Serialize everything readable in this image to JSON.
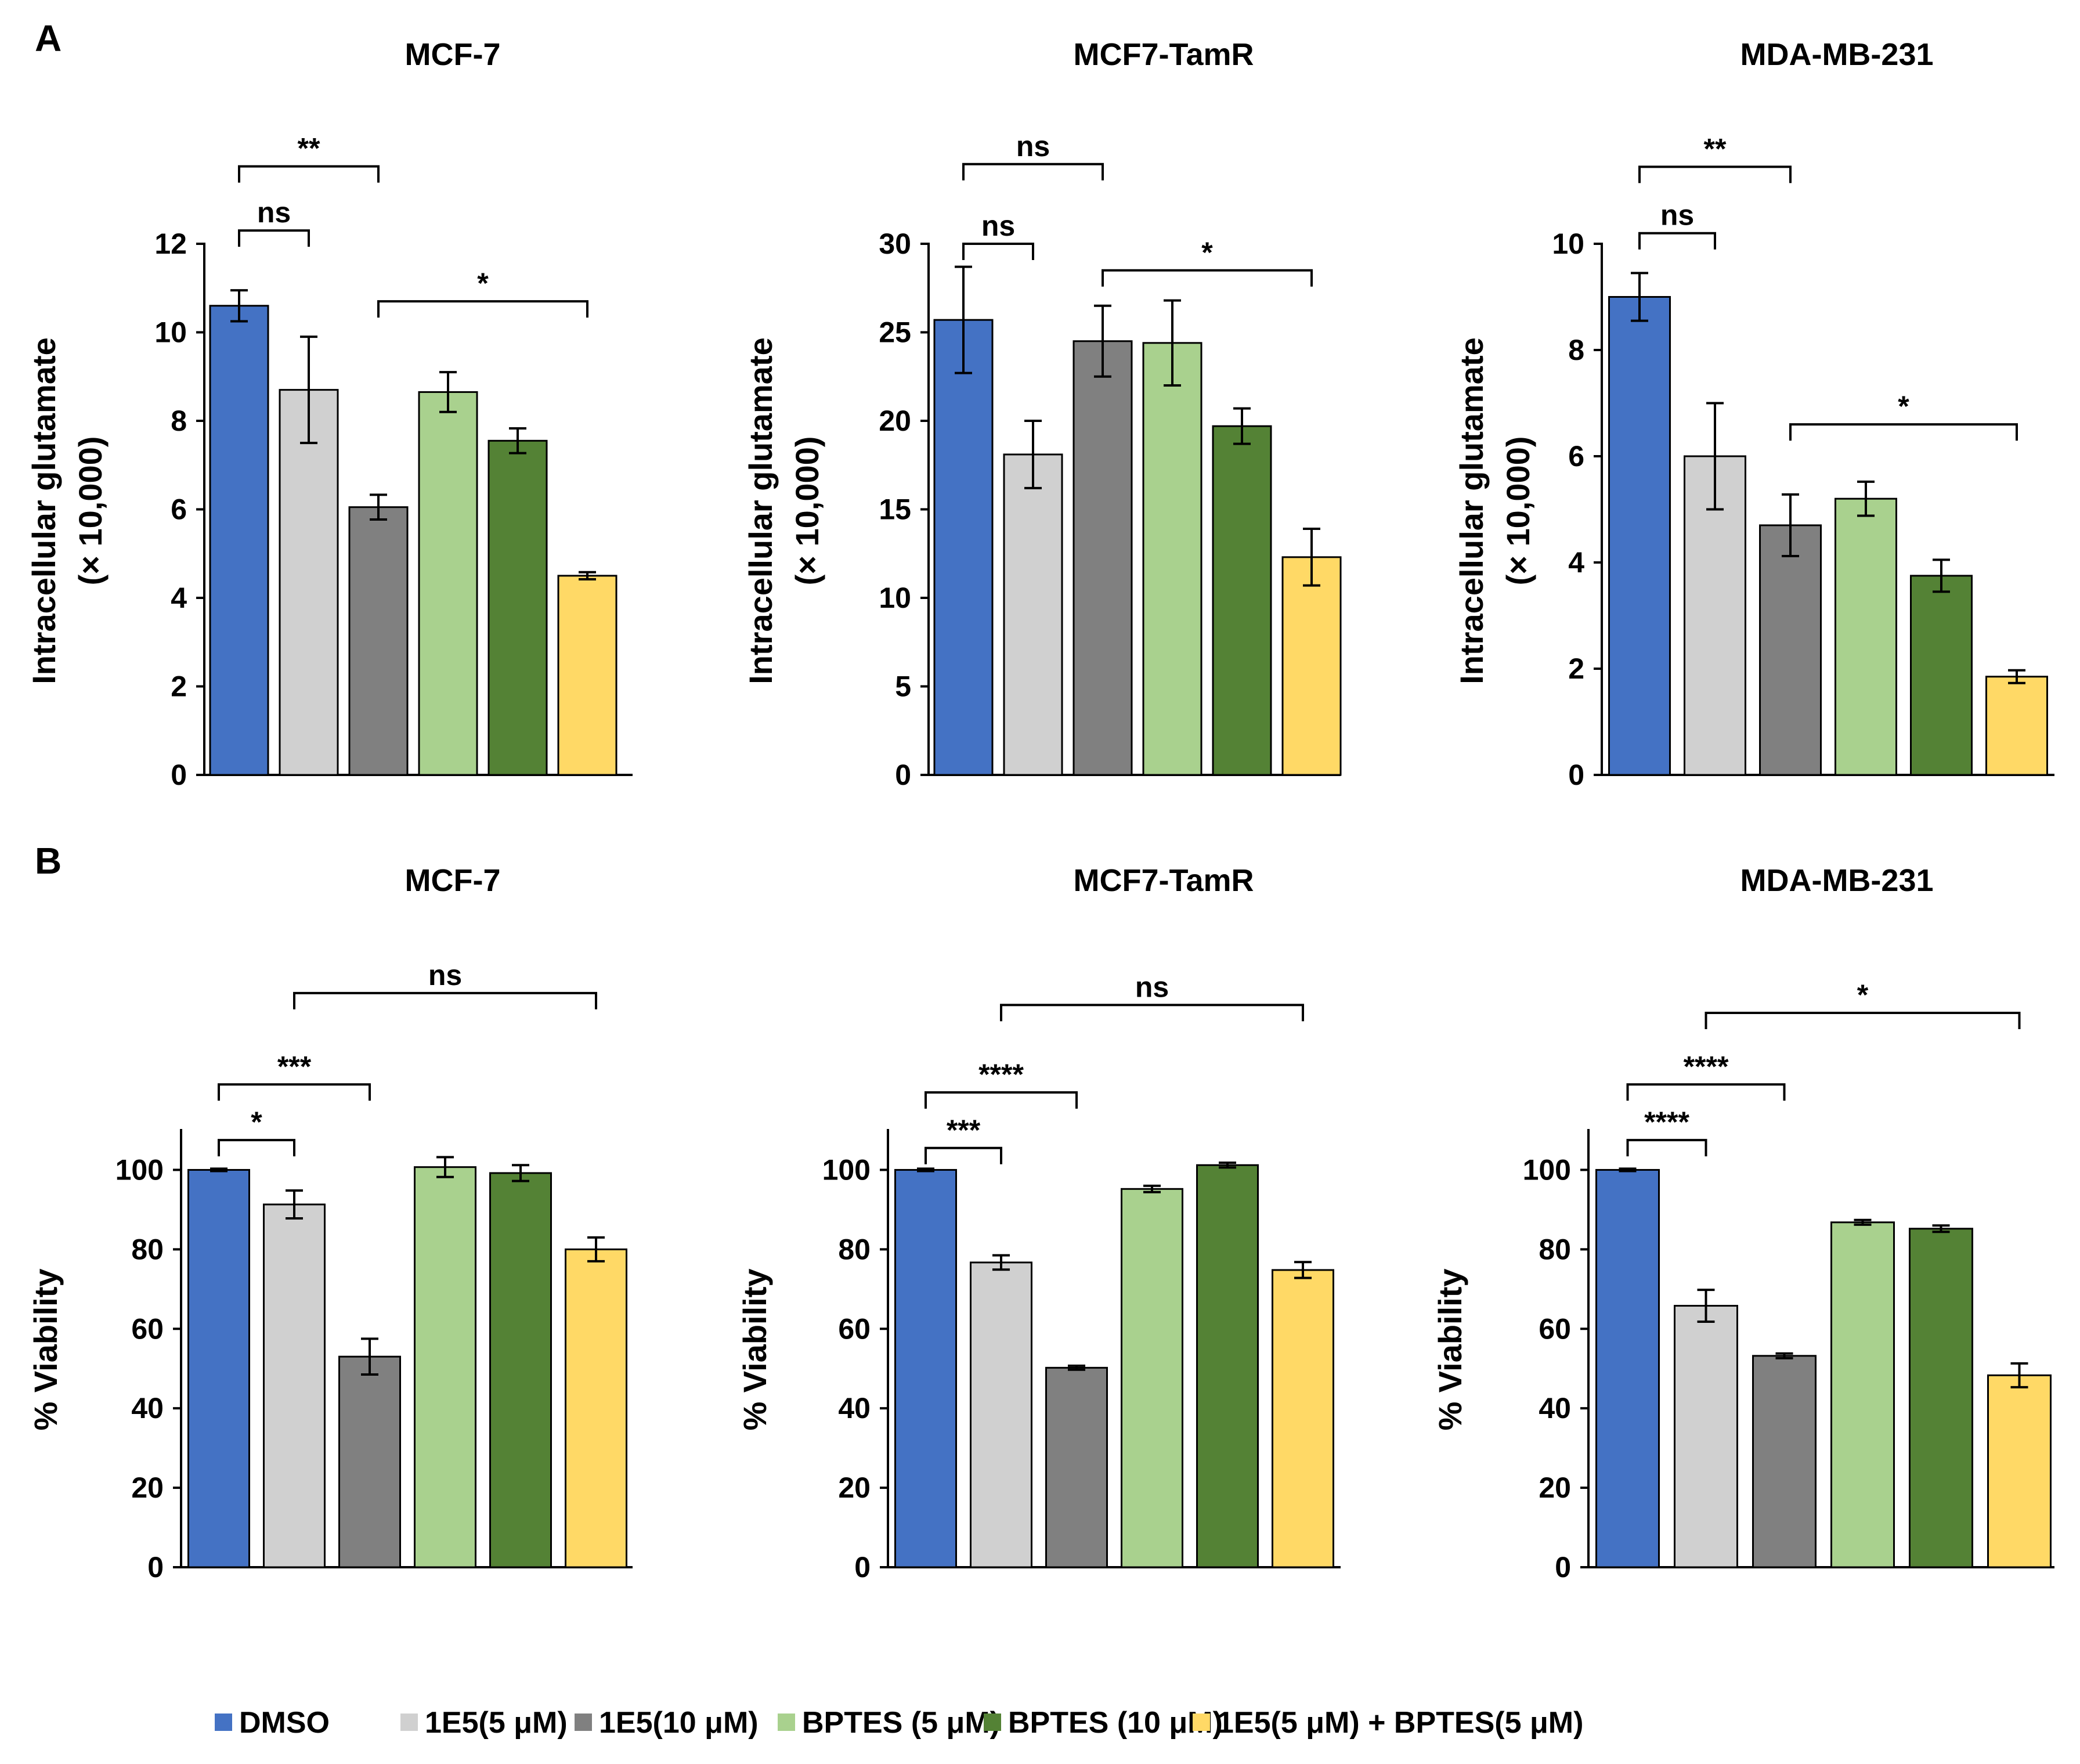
{
  "panel_labels": [
    "A",
    "B"
  ],
  "legend": [
    {
      "label": "DMSO",
      "color": "#4472c4"
    },
    {
      "label": "1E5(5 μM)",
      "color": "#d0d0d0"
    },
    {
      "label": "1E5(10 μM)",
      "color": "#808080"
    },
    {
      "label": "BPTES (5 μM)",
      "color": "#a9d18e"
    },
    {
      "label": "BPTES (10 μM)",
      "color": "#548235"
    },
    {
      "label": "1E5(5 μM) + BPTES(5 μM)",
      "color": "#ffd966"
    }
  ],
  "chart_data": [
    {
      "type": "bar",
      "panel": "A",
      "title": "MCF-7",
      "ylabel": [
        "Intracellular glutamate",
        "(× 10,000)"
      ],
      "ylim": [
        0,
        12
      ],
      "yticks": [
        0,
        2,
        4,
        6,
        8,
        10,
        12
      ],
      "categories": [
        "DMSO",
        "1E5(5 μM)",
        "1E5(10 μM)",
        "BPTES (5 μM)",
        "BPTES (10 μM)",
        "1E5(5 μM) + BPTES(5 μM)"
      ],
      "values": [
        10.6,
        8.7,
        6.05,
        8.65,
        7.55,
        4.5
      ],
      "errors": [
        0.35,
        1.2,
        0.28,
        0.45,
        0.28,
        0.08
      ],
      "annotations": [
        {
          "from": 0,
          "to": 1,
          "label": "ns",
          "level": 12.3
        },
        {
          "from": 0,
          "to": 2,
          "label": "**",
          "level": 13.75
        },
        {
          "from": 2,
          "to": 5,
          "label": "*",
          "level": 10.7
        }
      ]
    },
    {
      "type": "bar",
      "panel": "A",
      "title": "MCF7-TamR",
      "ylabel": [
        "Intracellular glutamate",
        "(× 10,000)"
      ],
      "ylim": [
        0,
        30
      ],
      "yticks": [
        0,
        5,
        10,
        15,
        20,
        25,
        30
      ],
      "categories": [
        "DMSO",
        "1E5(5 μM)",
        "1E5(10 μM)",
        "BPTES (5 μM)",
        "BPTES (10 μM)",
        "1E5(5 μM) + BPTES(5 μM)"
      ],
      "values": [
        25.7,
        18.1,
        24.5,
        24.4,
        19.7,
        12.3
      ],
      "errors": [
        3.0,
        1.9,
        2.0,
        2.4,
        1.0,
        1.6
      ],
      "annotations": [
        {
          "from": 0,
          "to": 1,
          "label": "ns",
          "level": 30.0
        },
        {
          "from": 0,
          "to": 2,
          "label": "ns",
          "level": 34.5
        },
        {
          "from": 2,
          "to": 5,
          "label": "*",
          "level": 28.5
        }
      ]
    },
    {
      "type": "bar",
      "panel": "A",
      "title": "MDA-MB-231",
      "ylabel": [
        "Intracellular glutamate",
        "(× 10,000)"
      ],
      "ylim": [
        0,
        10
      ],
      "yticks": [
        0,
        2,
        4,
        6,
        8,
        10
      ],
      "categories": [
        "DMSO",
        "1E5(5 μM)",
        "1E5(10 μM)",
        "BPTES (5 μM)",
        "BPTES (10 μM)",
        "1E5(5 μM) + BPTES(5 μM)"
      ],
      "values": [
        9.0,
        6.0,
        4.7,
        5.2,
        3.75,
        1.85
      ],
      "errors": [
        0.45,
        1.0,
        0.58,
        0.32,
        0.3,
        0.12
      ],
      "annotations": [
        {
          "from": 0,
          "to": 1,
          "label": "ns",
          "level": 10.2
        },
        {
          "from": 0,
          "to": 2,
          "label": "**",
          "level": 11.45
        },
        {
          "from": 2,
          "to": 5,
          "label": "*",
          "level": 6.6
        }
      ]
    },
    {
      "type": "bar",
      "panel": "B",
      "title": "MCF-7",
      "ylabel": [
        "% Viability"
      ],
      "ylim": [
        0,
        110
      ],
      "yticks": [
        0,
        20,
        40,
        60,
        80,
        100
      ],
      "categories": [
        "DMSO",
        "1E5(5 μM)",
        "1E5(10 μM)",
        "BPTES (5 μM)",
        "BPTES (10 μM)",
        "1E5(5 μM) + BPTES(5 μM)"
      ],
      "values": [
        100,
        91.3,
        53,
        100.7,
        99.2,
        80
      ],
      "errors": [
        0.3,
        3.5,
        4.5,
        2.5,
        2.0,
        3.0
      ],
      "annotations": [
        {
          "from": 0,
          "to": 1,
          "label": "*",
          "level": 107.5
        },
        {
          "from": 0,
          "to": 2,
          "label": "***",
          "level": 121.5
        },
        {
          "from": 1,
          "to": 5,
          "label": "ns",
          "level": 144.5
        }
      ]
    },
    {
      "type": "bar",
      "panel": "B",
      "title": "MCF7-TamR",
      "ylabel": [
        "% Viability"
      ],
      "ylim": [
        0,
        110
      ],
      "yticks": [
        0,
        20,
        40,
        60,
        80,
        100
      ],
      "categories": [
        "DMSO",
        "1E5(5 μM)",
        "1E5(10 μM)",
        "BPTES (5 μM)",
        "BPTES (10 μM)",
        "1E5(5 μM) + BPTES(5 μM)"
      ],
      "values": [
        100,
        76.7,
        50.2,
        95.2,
        101.2,
        74.8
      ],
      "errors": [
        0.3,
        1.8,
        0.5,
        0.8,
        0.6,
        2.0
      ],
      "annotations": [
        {
          "from": 0,
          "to": 1,
          "label": "***",
          "level": 105.5
        },
        {
          "from": 0,
          "to": 2,
          "label": "****",
          "level": 119.5
        },
        {
          "from": 1,
          "to": 5,
          "label": "ns",
          "level": 141.5
        }
      ]
    },
    {
      "type": "bar",
      "panel": "B",
      "title": "MDA-MB-231",
      "ylabel": [
        "% Viability"
      ],
      "ylim": [
        0,
        110
      ],
      "yticks": [
        0,
        20,
        40,
        60,
        80,
        100
      ],
      "categories": [
        "DMSO",
        "1E5(5 μM)",
        "1E5(10 μM)",
        "BPTES (5 μM)",
        "BPTES (10 μM)",
        "1E5(5 μM) + BPTES(5 μM)"
      ],
      "values": [
        100,
        65.8,
        53.2,
        86.8,
        85.2,
        48.3
      ],
      "errors": [
        0.3,
        4.0,
        0.6,
        0.6,
        0.8,
        3.0
      ],
      "annotations": [
        {
          "from": 0,
          "to": 1,
          "label": "****",
          "level": 107.5
        },
        {
          "from": 0,
          "to": 2,
          "label": "****",
          "level": 121.5
        },
        {
          "from": 1,
          "to": 5,
          "label": "*",
          "level": 139.5
        }
      ]
    }
  ]
}
